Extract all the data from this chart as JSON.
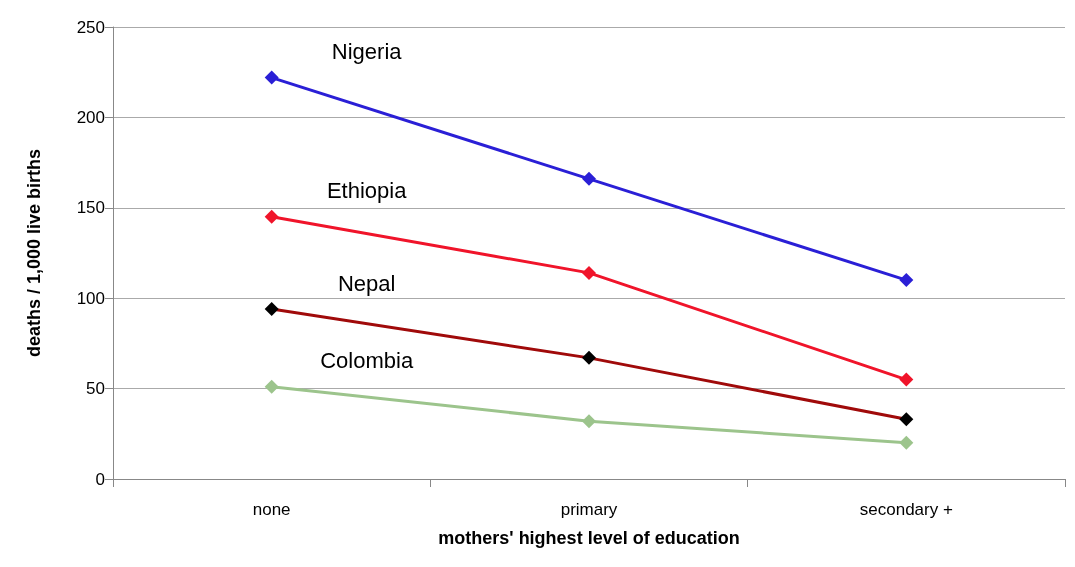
{
  "chart_data": {
    "type": "line",
    "xlabel": "mothers' highest level of education",
    "ylabel": "deaths / 1,000 live births",
    "categories": [
      "none",
      "primary",
      "secondary +"
    ],
    "series": [
      {
        "name": "Nigeria",
        "color": "#2a1fd6",
        "values": [
          222,
          166,
          110
        ]
      },
      {
        "name": "Ethiopia",
        "color": "#f0142a",
        "values": [
          145,
          114,
          55
        ]
      },
      {
        "name": "Nepal",
        "color": "#a00a0a",
        "colors": [
          "#000000",
          "#000000",
          "#000000"
        ],
        "values": [
          94,
          67,
          33
        ]
      },
      {
        "name": "Colombia",
        "color": "#9cc48c",
        "values": [
          51,
          32,
          20
        ]
      }
    ],
    "ylim": [
      0,
      250
    ],
    "yticks": [
      0,
      50,
      100,
      150,
      200,
      250
    ],
    "grid": "y",
    "legend": false,
    "marker": "diamond",
    "line_style": "solid"
  }
}
